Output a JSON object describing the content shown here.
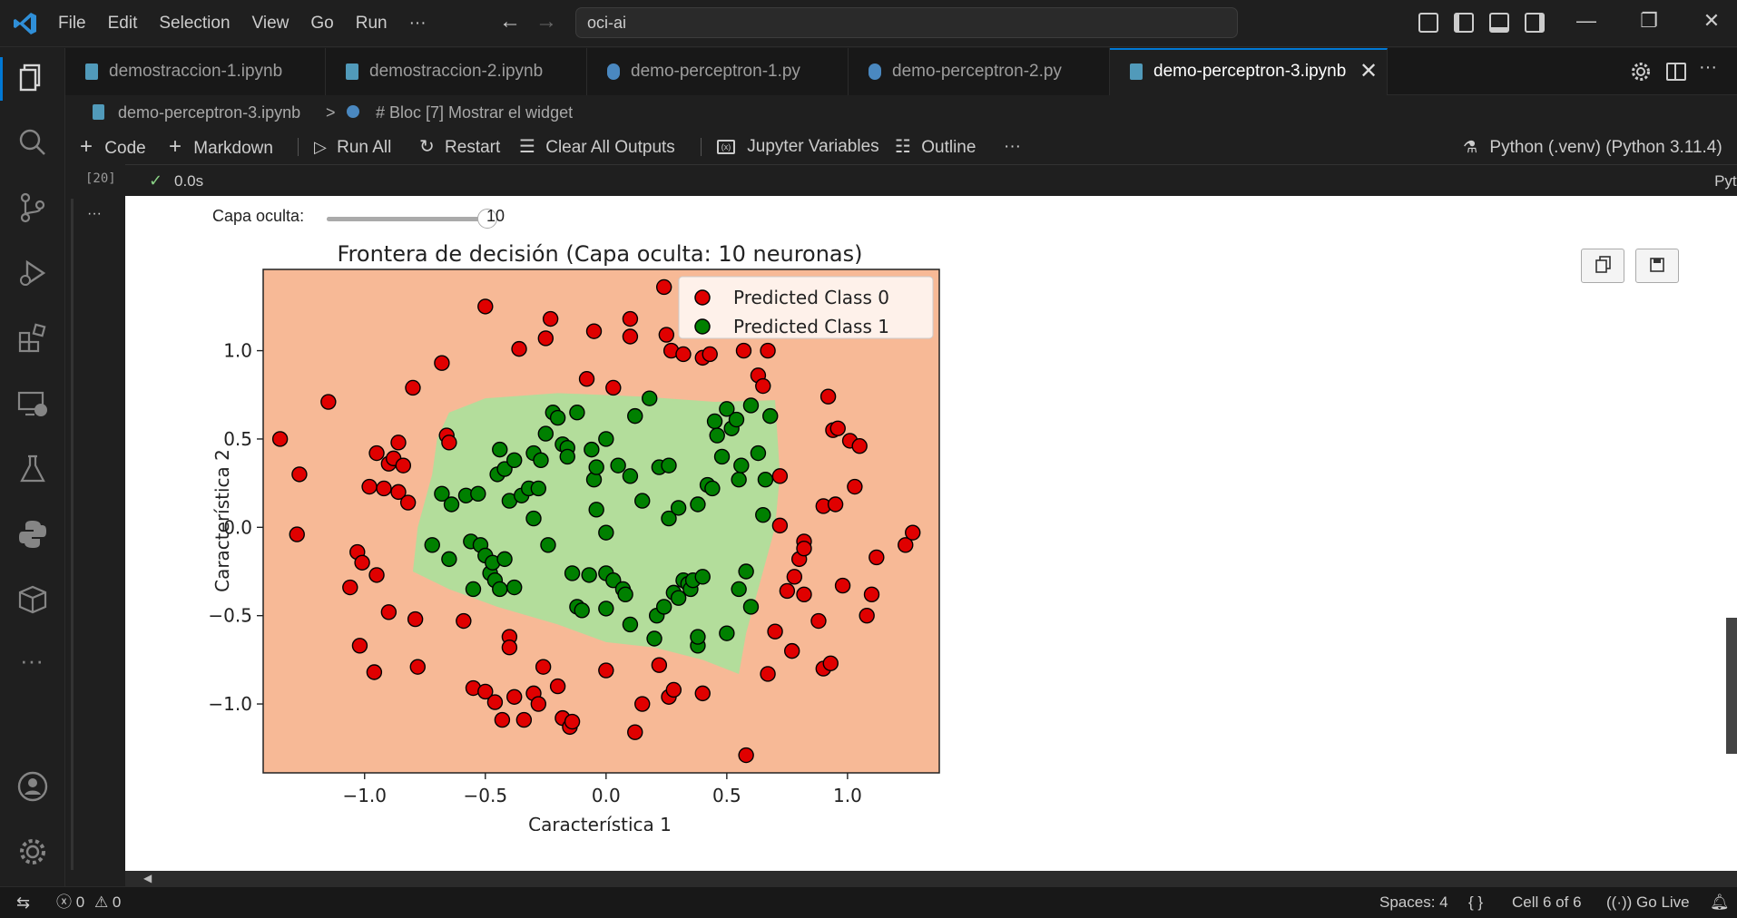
{
  "titlebar": {
    "menus": [
      "File",
      "Edit",
      "Selection",
      "View",
      "Go",
      "Run",
      "···"
    ],
    "command_center": "oci-ai"
  },
  "tabs": [
    {
      "label": "demostraccion-1.ipynb",
      "kind": "notebook"
    },
    {
      "label": "demostraccion-2.ipynb",
      "kind": "notebook"
    },
    {
      "label": "demo-perceptron-1.py",
      "kind": "python"
    },
    {
      "label": "demo-perceptron-2.py",
      "kind": "python"
    },
    {
      "label": "demo-perceptron-3.ipynb",
      "kind": "notebook",
      "active": true
    }
  ],
  "breadcrumb": {
    "file": "demo-perceptron-3.ipynb",
    "separator": ">",
    "symbol": "# Bloc [7] Mostrar el widget"
  },
  "toolbar": {
    "code": "Code",
    "markdown": "Markdown",
    "run_all": "Run All",
    "restart": "Restart",
    "clear_outputs": "Clear All Outputs",
    "variables": "Jupyter Variables",
    "outline": "Outline",
    "more": "···",
    "kernel": "Python (.venv) (Python 3.11.4)"
  },
  "cell": {
    "exec_count": "[20]",
    "check": "✓",
    "duration": "0.0s",
    "language": "Python",
    "more": "···"
  },
  "widget": {
    "label": "Capa oculta:",
    "value": "10",
    "fraction": 0.94
  },
  "chart_data": {
    "type": "scatter",
    "title": "Frontera de decisión (Capa oculta: 10 neuronas)",
    "xlabel": "Característica 1",
    "ylabel": "Característica 2",
    "xlim": [
      -1.42,
      1.38
    ],
    "ylim": [
      -1.39,
      1.46
    ],
    "xticks": [
      -1.0,
      -0.5,
      0.0,
      0.5,
      1.0
    ],
    "yticks": [
      -1.0,
      -0.5,
      0.0,
      0.5,
      1.0
    ],
    "xtick_labels": [
      "−1.0",
      "−0.5",
      "0.0",
      "0.5",
      "1.0"
    ],
    "ytick_labels": [
      "−1.0",
      "−0.5",
      "0.0",
      "0.5",
      "1.0"
    ],
    "legend_placement": "top-right",
    "background_colors": {
      "class0": "#f7b996",
      "class1": "#b3dd9b"
    },
    "decision_region_class1": [
      [
        -0.65,
        0.65
      ],
      [
        -0.5,
        0.73
      ],
      [
        -0.2,
        0.76
      ],
      [
        0.15,
        0.74
      ],
      [
        0.45,
        0.71
      ],
      [
        0.7,
        0.72
      ],
      [
        0.72,
        0.3
      ],
      [
        0.7,
        0.0
      ],
      [
        0.64,
        -0.3
      ],
      [
        0.58,
        -0.6
      ],
      [
        0.55,
        -0.83
      ],
      [
        0.4,
        -0.75
      ],
      [
        0.2,
        -0.68
      ],
      [
        0.0,
        -0.65
      ],
      [
        -0.2,
        -0.55
      ],
      [
        -0.45,
        -0.45
      ],
      [
        -0.65,
        -0.35
      ],
      [
        -0.8,
        -0.25
      ],
      [
        -0.78,
        0.0
      ],
      [
        -0.72,
        0.3
      ],
      [
        -0.7,
        0.5
      ]
    ],
    "series": [
      {
        "name": "Predicted Class 0",
        "color": "#e00000",
        "points": [
          [
            -1.35,
            0.5
          ],
          [
            -1.28,
            -0.04
          ],
          [
            -1.27,
            0.3
          ],
          [
            -1.15,
            0.71
          ],
          [
            -1.06,
            -0.34
          ],
          [
            -1.03,
            -0.14
          ],
          [
            -1.01,
            -0.2
          ],
          [
            -1.02,
            -0.67
          ],
          [
            -0.98,
            0.23
          ],
          [
            -0.96,
            -0.82
          ],
          [
            -0.95,
            0.42
          ],
          [
            -0.95,
            -0.27
          ],
          [
            -0.92,
            0.22
          ],
          [
            -0.9,
            -0.48
          ],
          [
            -0.9,
            0.36
          ],
          [
            -0.88,
            0.39
          ],
          [
            -0.86,
            0.48
          ],
          [
            -0.86,
            0.2
          ],
          [
            -0.84,
            0.35
          ],
          [
            -0.82,
            0.14
          ],
          [
            -0.8,
            0.79
          ],
          [
            -0.79,
            -0.52
          ],
          [
            -0.78,
            -0.79
          ],
          [
            -0.68,
            0.93
          ],
          [
            -0.66,
            0.52
          ],
          [
            -0.65,
            0.48
          ],
          [
            -0.59,
            -0.53
          ],
          [
            -0.55,
            -0.91
          ],
          [
            -0.5,
            1.25
          ],
          [
            -0.5,
            -0.93
          ],
          [
            -0.46,
            -0.99
          ],
          [
            -0.43,
            -1.09
          ],
          [
            -0.4,
            -0.62
          ],
          [
            -0.4,
            -0.68
          ],
          [
            -0.38,
            -0.96
          ],
          [
            -0.36,
            1.01
          ],
          [
            -0.34,
            -1.09
          ],
          [
            -0.3,
            -0.94
          ],
          [
            -0.28,
            -1.0
          ],
          [
            -0.26,
            -0.79
          ],
          [
            -0.25,
            1.07
          ],
          [
            -0.23,
            1.18
          ],
          [
            -0.2,
            -0.9
          ],
          [
            -0.18,
            -1.08
          ],
          [
            -0.15,
            -1.13
          ],
          [
            -0.14,
            -1.1
          ],
          [
            -0.08,
            0.84
          ],
          [
            -0.05,
            1.11
          ],
          [
            0.0,
            -0.81
          ],
          [
            0.03,
            0.79
          ],
          [
            0.1,
            1.18
          ],
          [
            0.1,
            1.08
          ],
          [
            0.12,
            -1.16
          ],
          [
            0.15,
            -1.0
          ],
          [
            0.22,
            -0.78
          ],
          [
            0.24,
            1.36
          ],
          [
            0.25,
            1.09
          ],
          [
            0.26,
            -0.96
          ],
          [
            0.27,
            1.0
          ],
          [
            0.28,
            -0.92
          ],
          [
            0.32,
            0.98
          ],
          [
            0.4,
            0.96
          ],
          [
            0.4,
            -0.94
          ],
          [
            0.43,
            0.98
          ],
          [
            0.57,
            1.0
          ],
          [
            0.58,
            -1.29
          ],
          [
            0.63,
            0.86
          ],
          [
            0.65,
            0.8
          ],
          [
            0.67,
            1.0
          ],
          [
            0.67,
            -0.83
          ],
          [
            0.7,
            -0.59
          ],
          [
            0.72,
            0.29
          ],
          [
            0.72,
            0.01
          ],
          [
            0.75,
            -0.36
          ],
          [
            0.77,
            -0.7
          ],
          [
            0.78,
            -0.28
          ],
          [
            0.8,
            -0.18
          ],
          [
            0.82,
            -0.08
          ],
          [
            0.82,
            -0.38
          ],
          [
            0.82,
            -0.12
          ],
          [
            0.88,
            -0.53
          ],
          [
            0.9,
            0.12
          ],
          [
            0.9,
            -0.8
          ],
          [
            0.92,
            0.74
          ],
          [
            0.93,
            -0.77
          ],
          [
            0.94,
            0.55
          ],
          [
            0.95,
            0.13
          ],
          [
            0.96,
            0.56
          ],
          [
            0.98,
            -0.33
          ],
          [
            1.01,
            0.49
          ],
          [
            1.03,
            0.23
          ],
          [
            1.05,
            0.46
          ],
          [
            1.08,
            -0.5
          ],
          [
            1.1,
            -0.38
          ],
          [
            1.12,
            -0.17
          ],
          [
            1.24,
            -0.1
          ],
          [
            1.27,
            -0.03
          ]
        ]
      },
      {
        "name": "Predicted Class 1",
        "color": "#008000",
        "points": [
          [
            -0.72,
            -0.1
          ],
          [
            -0.68,
            0.19
          ],
          [
            -0.64,
            0.13
          ],
          [
            -0.65,
            -0.18
          ],
          [
            -0.58,
            0.18
          ],
          [
            -0.56,
            -0.08
          ],
          [
            -0.55,
            -0.35
          ],
          [
            -0.53,
            0.19
          ],
          [
            -0.52,
            -0.1
          ],
          [
            -0.5,
            -0.16
          ],
          [
            -0.48,
            -0.26
          ],
          [
            -0.47,
            -0.2
          ],
          [
            -0.46,
            -0.3
          ],
          [
            -0.45,
            0.3
          ],
          [
            -0.42,
            0.33
          ],
          [
            -0.44,
            0.44
          ],
          [
            -0.44,
            -0.35
          ],
          [
            -0.42,
            -0.18
          ],
          [
            -0.4,
            0.15
          ],
          [
            -0.38,
            0.38
          ],
          [
            -0.38,
            -0.34
          ],
          [
            -0.35,
            0.18
          ],
          [
            -0.32,
            0.22
          ],
          [
            -0.3,
            0.05
          ],
          [
            -0.3,
            0.42
          ],
          [
            -0.28,
            0.22
          ],
          [
            -0.27,
            0.38
          ],
          [
            -0.25,
            0.53
          ],
          [
            -0.24,
            -0.1
          ],
          [
            -0.22,
            0.65
          ],
          [
            -0.2,
            0.62
          ],
          [
            -0.18,
            0.47
          ],
          [
            -0.16,
            0.45
          ],
          [
            -0.16,
            0.4
          ],
          [
            -0.14,
            -0.26
          ],
          [
            -0.12,
            0.65
          ],
          [
            -0.12,
            -0.45
          ],
          [
            -0.1,
            -0.47
          ],
          [
            -0.07,
            -0.27
          ],
          [
            -0.06,
            0.44
          ],
          [
            -0.05,
            0.27
          ],
          [
            -0.04,
            0.1
          ],
          [
            -0.04,
            0.34
          ],
          [
            0.0,
            0.5
          ],
          [
            0.0,
            -0.03
          ],
          [
            0.0,
            -0.26
          ],
          [
            0.0,
            -0.46
          ],
          [
            0.03,
            -0.3
          ],
          [
            0.05,
            0.35
          ],
          [
            0.07,
            -0.35
          ],
          [
            0.08,
            -0.38
          ],
          [
            0.1,
            0.29
          ],
          [
            0.1,
            -0.55
          ],
          [
            0.12,
            0.63
          ],
          [
            0.15,
            0.15
          ],
          [
            0.18,
            0.73
          ],
          [
            0.2,
            -0.63
          ],
          [
            0.21,
            -0.5
          ],
          [
            0.22,
            0.34
          ],
          [
            0.24,
            -0.45
          ],
          [
            0.26,
            0.05
          ],
          [
            0.26,
            0.35
          ],
          [
            0.28,
            -0.37
          ],
          [
            0.3,
            -0.4
          ],
          [
            0.3,
            0.11
          ],
          [
            0.32,
            -0.3
          ],
          [
            0.34,
            -0.32
          ],
          [
            0.35,
            -0.35
          ],
          [
            0.36,
            -0.3
          ],
          [
            0.38,
            0.13
          ],
          [
            0.38,
            -0.67
          ],
          [
            0.38,
            -0.62
          ],
          [
            0.4,
            -0.28
          ],
          [
            0.42,
            0.24
          ],
          [
            0.44,
            0.22
          ],
          [
            0.45,
            0.6
          ],
          [
            0.46,
            0.52
          ],
          [
            0.48,
            0.4
          ],
          [
            0.5,
            0.67
          ],
          [
            0.5,
            -0.6
          ],
          [
            0.52,
            0.56
          ],
          [
            0.54,
            0.61
          ],
          [
            0.55,
            0.27
          ],
          [
            0.55,
            -0.35
          ],
          [
            0.56,
            0.35
          ],
          [
            0.58,
            -0.25
          ],
          [
            0.6,
            0.69
          ],
          [
            0.6,
            -0.45
          ],
          [
            0.63,
            0.42
          ],
          [
            0.65,
            0.07
          ],
          [
            0.66,
            0.27
          ],
          [
            0.68,
            0.63
          ]
        ]
      }
    ]
  },
  "statusbar": {
    "errors": "0",
    "warnings": "0",
    "spaces": "Spaces: 4",
    "braces": "{ }",
    "cell_pos": "Cell 6 of 6",
    "golive": "Go Live"
  },
  "colors": {
    "accent": "#0078d4",
    "notebook_icon": "#519aba",
    "python_icon": "#3572a5"
  }
}
